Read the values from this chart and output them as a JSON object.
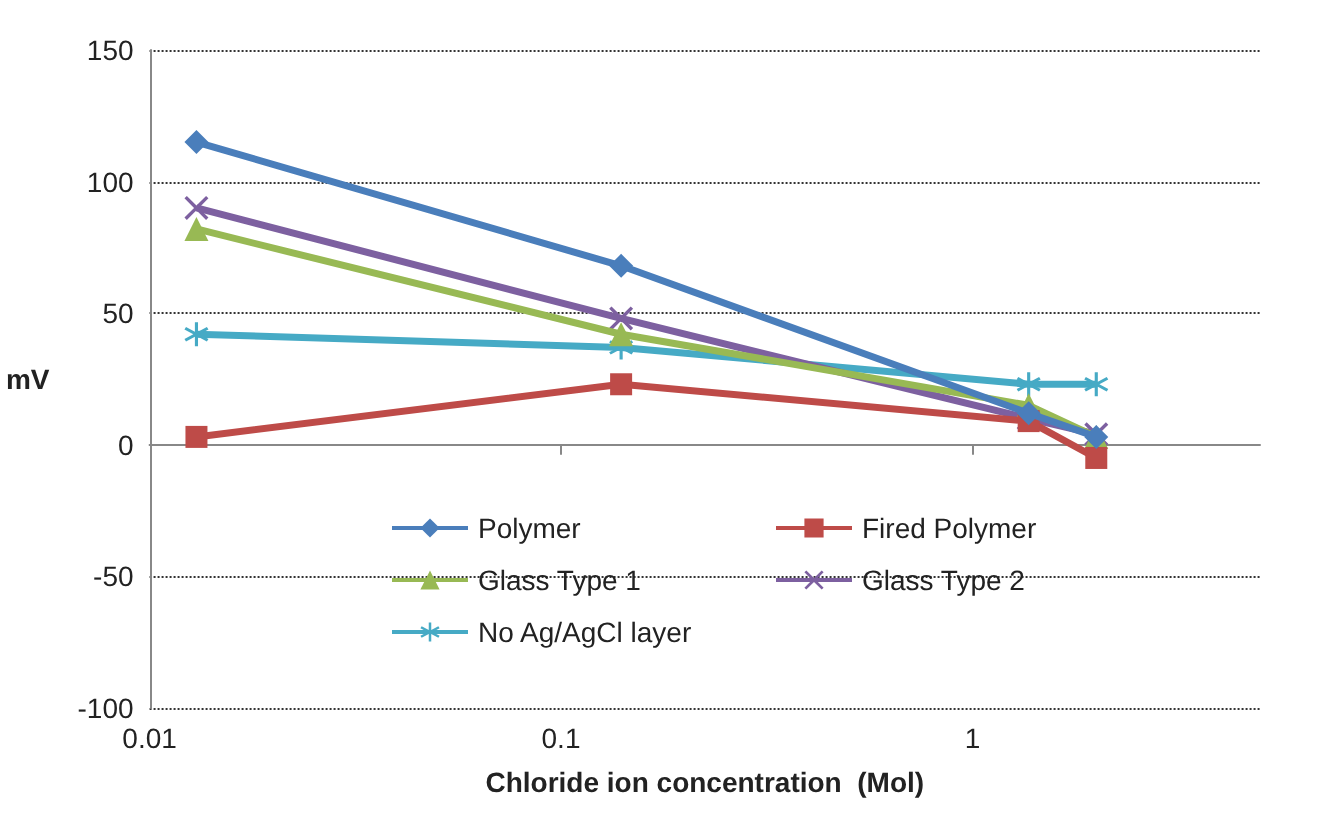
{
  "chart_data": {
    "type": "line",
    "xlabel": "Chloride ion concentration  (Mol)",
    "ylabel": "mV",
    "log": "x",
    "grid": "y",
    "legend": "bottom",
    "x": [
      0.013,
      0.14,
      1.37,
      2
    ],
    "xlim": [
      0.01,
      5
    ],
    "xticks": [
      0.01,
      0.1,
      1
    ],
    "ylim": [
      -100,
      150
    ],
    "yticks": [
      -100,
      -50,
      0,
      50,
      100,
      150
    ],
    "series": [
      {
        "name": "Polymer",
        "color": "#4a7ebb",
        "marker": "diamond",
        "values": [
          115,
          68,
          12,
          3
        ]
      },
      {
        "name": "Fired Polymer",
        "color": "#be4b48",
        "marker": "square",
        "values": [
          3,
          23,
          9,
          -5
        ]
      },
      {
        "name": "Glass Type 1",
        "color": "#98b954",
        "marker": "triangle",
        "values": [
          82,
          42,
          15,
          3
        ]
      },
      {
        "name": "Glass Type 2",
        "color": "#7d60a0",
        "marker": "cross",
        "values": [
          90,
          48,
          10,
          4
        ]
      },
      {
        "name": "No Ag/AgCl layer",
        "color": "#46aac5",
        "marker": "star",
        "values": [
          42,
          37,
          23,
          23
        ]
      }
    ]
  }
}
